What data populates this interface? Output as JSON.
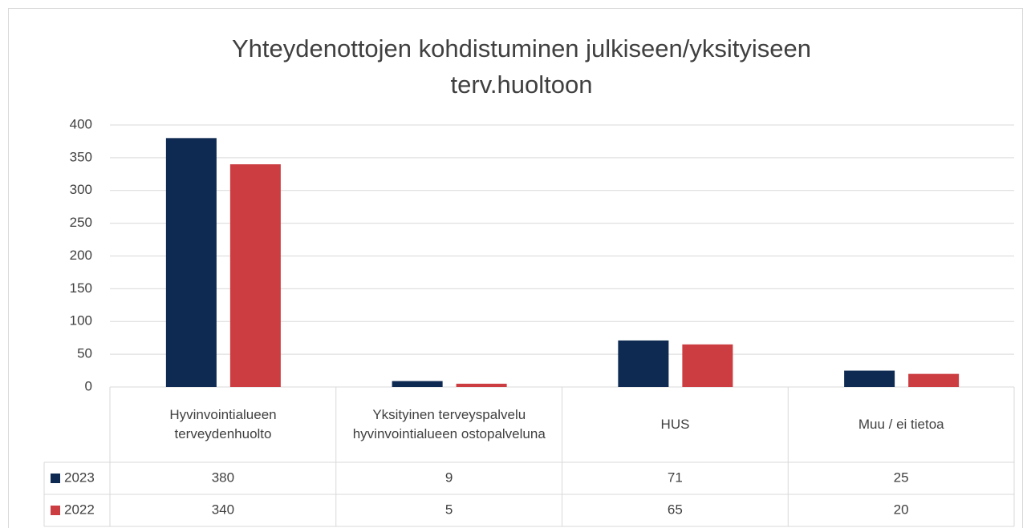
{
  "chart_data": {
    "type": "bar",
    "title": "Yhteydenottojen kohdistuminen julkiseen/yksityiseen terv.huoltoon",
    "categories": [
      "Hyvinvointialueen terveydenhuolto",
      "Yksityinen terveyspalvelu hyvinvointialueen ostopalveluna",
      "HUS",
      "Muu / ei tietoa"
    ],
    "series": [
      {
        "name": "2023",
        "color": "#0e2a52",
        "values": [
          380,
          9,
          71,
          25
        ]
      },
      {
        "name": "2022",
        "color": "#cc3d42",
        "values": [
          340,
          5,
          65,
          20
        ]
      }
    ],
    "ylim": [
      0,
      400
    ],
    "yticks": [
      0,
      50,
      100,
      150,
      200,
      250,
      300,
      350,
      400
    ],
    "grid": true
  }
}
